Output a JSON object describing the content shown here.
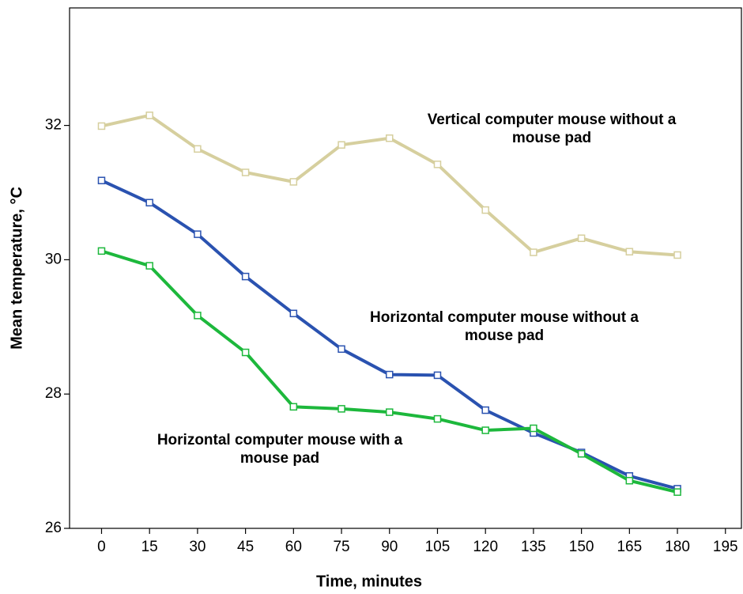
{
  "chart_data": {
    "type": "line",
    "x_label": "Time, minutes",
    "y_label": "Mean temperature, °C",
    "x": [
      0,
      15,
      30,
      45,
      60,
      75,
      90,
      105,
      120,
      135,
      150,
      165,
      180
    ],
    "xlim": [
      -10,
      200
    ],
    "xticks": [
      0,
      15,
      30,
      45,
      60,
      75,
      90,
      105,
      120,
      135,
      150,
      165,
      180,
      195
    ],
    "ylim": [
      26,
      33.75
    ],
    "yticks": [
      26,
      28,
      30,
      32
    ],
    "series": [
      {
        "color": "#d6cf9e",
        "values": [
          31.99,
          32.15,
          31.65,
          31.3,
          31.16,
          31.71,
          31.81,
          31.42,
          30.74,
          30.11,
          30.32,
          30.12,
          30.07
        ]
      },
      {
        "color": "#2a52b0",
        "values": [
          31.18,
          30.85,
          30.38,
          29.75,
          29.2,
          28.67,
          28.29,
          28.28,
          27.76,
          27.42,
          27.13,
          26.78,
          26.59
        ]
      },
      {
        "color": "#1db83c",
        "values": [
          30.13,
          29.91,
          29.17,
          28.62,
          27.81,
          27.78,
          27.73,
          27.63,
          27.46,
          27.49,
          27.11,
          26.71,
          26.54
        ]
      }
    ],
    "annotations": [
      {
        "lines": [
          "Vertical computer mouse without a",
          "mouse pad"
        ]
      },
      {
        "lines": [
          "Horizontal computer mouse without a",
          "mouse pad"
        ]
      },
      {
        "lines": [
          "Horizontal computer mouse with a",
          "mouse pad"
        ]
      }
    ]
  }
}
